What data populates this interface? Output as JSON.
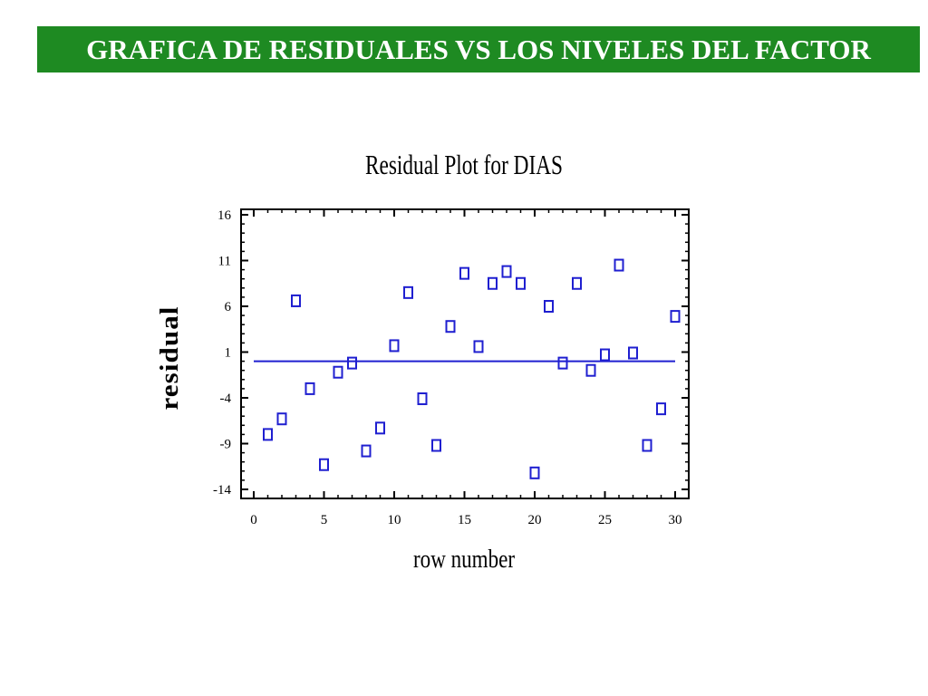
{
  "banner": {
    "title": "GRAFICA DE RESIDUALES VS LOS NIVELES DEL FACTOR"
  },
  "colors": {
    "banner_bg": "#1e8a22",
    "marker": "#1f1fd0",
    "zero_line": "#1f1fd0"
  },
  "chart_data": {
    "type": "scatter",
    "title": "Residual Plot for DIAS",
    "xlabel": "row number",
    "ylabel": "residual",
    "xlim": [
      0,
      30
    ],
    "ylim": [
      -14,
      16
    ],
    "xticks": [
      "0",
      "5",
      "10",
      "15",
      "20",
      "25",
      "30"
    ],
    "yticks": [
      "16",
      "11",
      "6",
      "1",
      "-4",
      "-9",
      "-14"
    ],
    "grid": false,
    "marker": "open-square",
    "reference_line": 0,
    "series": [
      {
        "points": [
          [
            1,
            -8
          ],
          [
            2,
            -6.3
          ],
          [
            3,
            6.6
          ],
          [
            4,
            -3
          ],
          [
            5,
            -11.3
          ],
          [
            6,
            -1.2
          ],
          [
            7,
            -0.2
          ],
          [
            8,
            -9.8
          ],
          [
            9,
            -7.3
          ],
          [
            10,
            1.7
          ],
          [
            11,
            7.5
          ],
          [
            12,
            -4.1
          ],
          [
            13,
            -9.2
          ],
          [
            14,
            3.8
          ],
          [
            15,
            9.6
          ],
          [
            16,
            1.6
          ],
          [
            17,
            8.5
          ],
          [
            18,
            9.8
          ],
          [
            19,
            8.5
          ],
          [
            20,
            -12.2
          ],
          [
            21,
            6
          ],
          [
            22,
            -0.2
          ],
          [
            23,
            8.5
          ],
          [
            24,
            -1
          ],
          [
            25,
            0.7
          ],
          [
            26,
            10.5
          ],
          [
            27,
            0.9
          ],
          [
            28,
            -9.2
          ],
          [
            29,
            -5.2
          ],
          [
            30,
            4.9
          ]
        ]
      }
    ]
  }
}
